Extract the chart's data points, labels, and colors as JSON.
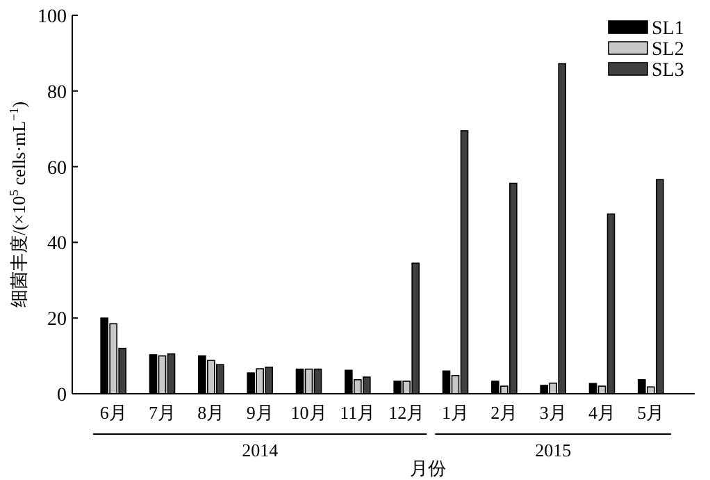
{
  "chart_data": {
    "type": "bar",
    "categories": [
      "6月",
      "7月",
      "8月",
      "9月",
      "10月",
      "11月",
      "12月",
      "1月",
      "2月",
      "3月",
      "4月",
      "5月"
    ],
    "series": [
      {
        "name": "SL1",
        "color": "#000000",
        "values": [
          20,
          10.3,
          10,
          5.5,
          6.5,
          6.2,
          3.3,
          6,
          3.3,
          2.2,
          2.7,
          3.7
        ]
      },
      {
        "name": "SL2",
        "color": "#c8c8c8",
        "values": [
          18.5,
          10,
          8.8,
          6.6,
          6.5,
          3.7,
          3.3,
          4.8,
          2,
          2.8,
          2,
          1.8
        ]
      },
      {
        "name": "SL3",
        "color": "#404040",
        "values": [
          12,
          10.5,
          7.7,
          7,
          6.5,
          4.4,
          34.5,
          69.5,
          55.6,
          87.2,
          47.5,
          56.6
        ]
      }
    ],
    "xlabel": "月份",
    "ylabel": "细菌丰度/(×10$^{5}$ cells·mL$^{−1}$)",
    "annotations": [
      "2014",
      "2015"
    ],
    "ylim": [
      0,
      100
    ],
    "yticks": [
      0,
      20,
      40,
      60,
      80,
      100
    ],
    "legend": "top right",
    "grid": false
  }
}
